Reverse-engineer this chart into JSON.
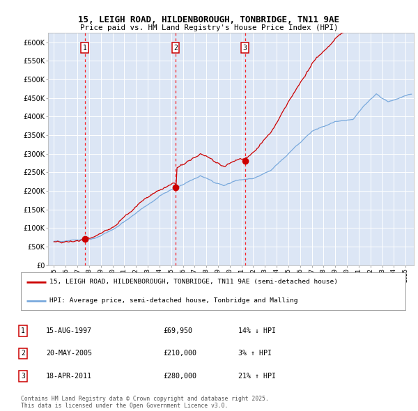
{
  "title1": "15, LEIGH ROAD, HILDENBOROUGH, TONBRIDGE, TN11 9AE",
  "title2": "Price paid vs. HM Land Registry's House Price Index (HPI)",
  "bg_color": "#dce6f5",
  "sale_color": "#cc0000",
  "hpi_color": "#7aaadd",
  "marker_dates": [
    1997.62,
    2005.38,
    2011.29
  ],
  "marker_labels": [
    "1",
    "2",
    "3"
  ],
  "sale_prices": [
    69950,
    210000,
    280000
  ],
  "sale_info": [
    [
      "1",
      "15-AUG-1997",
      "£69,950",
      "14% ↓ HPI"
    ],
    [
      "2",
      "20-MAY-2005",
      "£210,000",
      "3% ↑ HPI"
    ],
    [
      "3",
      "18-APR-2011",
      "£280,000",
      "21% ↑ HPI"
    ]
  ],
  "legend1": "15, LEIGH ROAD, HILDENBOROUGH, TONBRIDGE, TN11 9AE (semi-detached house)",
  "legend2": "HPI: Average price, semi-detached house, Tonbridge and Malling",
  "footer": "Contains HM Land Registry data © Crown copyright and database right 2025.\nThis data is licensed under the Open Government Licence v3.0.",
  "ylim": [
    0,
    625000
  ],
  "yticks": [
    0,
    50000,
    100000,
    150000,
    200000,
    250000,
    300000,
    350000,
    400000,
    450000,
    500000,
    550000,
    600000
  ],
  "xlim_start": 1994.5,
  "xlim_end": 2025.7
}
